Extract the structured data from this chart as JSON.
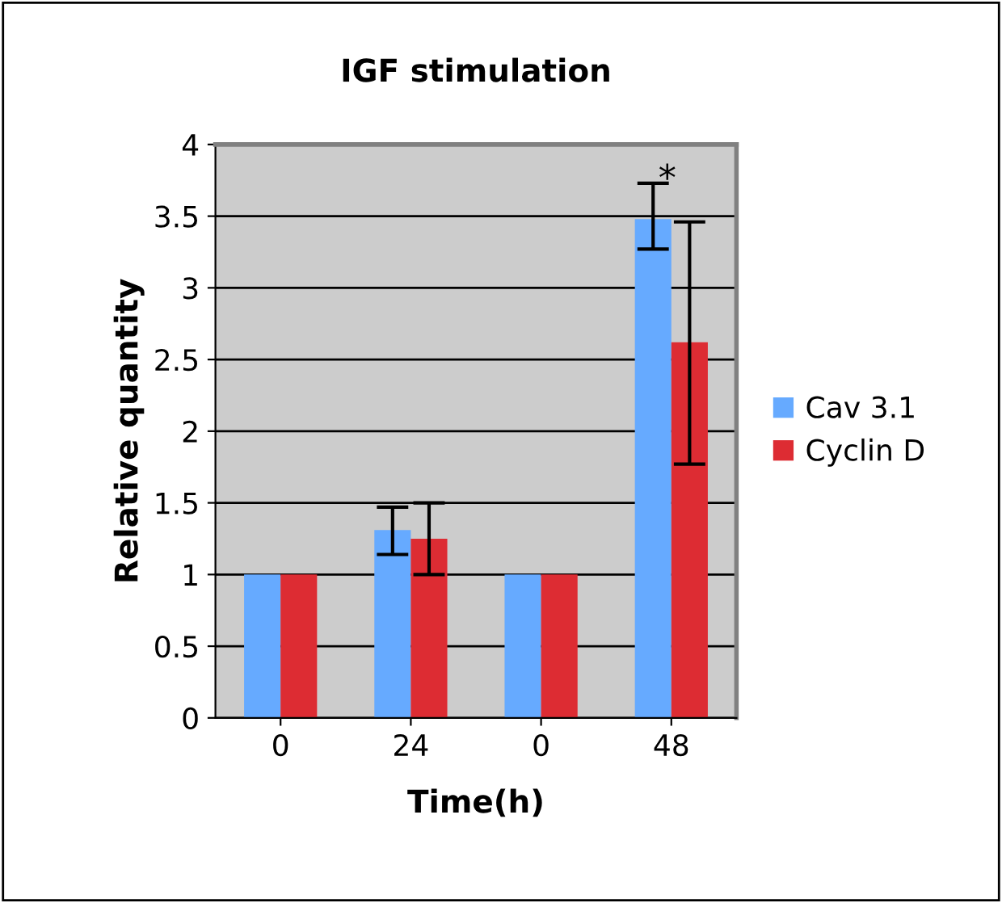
{
  "chart_data": {
    "type": "bar",
    "title": "IGF stimulation",
    "xlabel": "Time(h)",
    "ylabel": "Relative quantity",
    "categories": [
      "0",
      "24",
      "0",
      "48"
    ],
    "series": [
      {
        "name": "Cav 3.1",
        "color": "#66aaff",
        "values": [
          1.0,
          1.31,
          1.0,
          3.48
        ],
        "errors": [
          null,
          [
            1.14,
            1.47
          ],
          null,
          [
            3.27,
            3.73
          ]
        ]
      },
      {
        "name": "Cyclin D",
        "color": "#dd2c33",
        "values": [
          1.0,
          1.25,
          1.0,
          2.62
        ],
        "errors": [
          null,
          [
            1.0,
            1.5
          ],
          null,
          [
            1.77,
            3.46
          ]
        ]
      }
    ],
    "annotations": [
      {
        "text": "*",
        "x": "48",
        "y": 3.75
      }
    ],
    "ylim": [
      0,
      4
    ],
    "yticks": [
      0,
      0.5,
      1,
      1.5,
      2,
      2.5,
      3,
      3.5,
      4
    ],
    "grid": "y",
    "legend": "right"
  }
}
